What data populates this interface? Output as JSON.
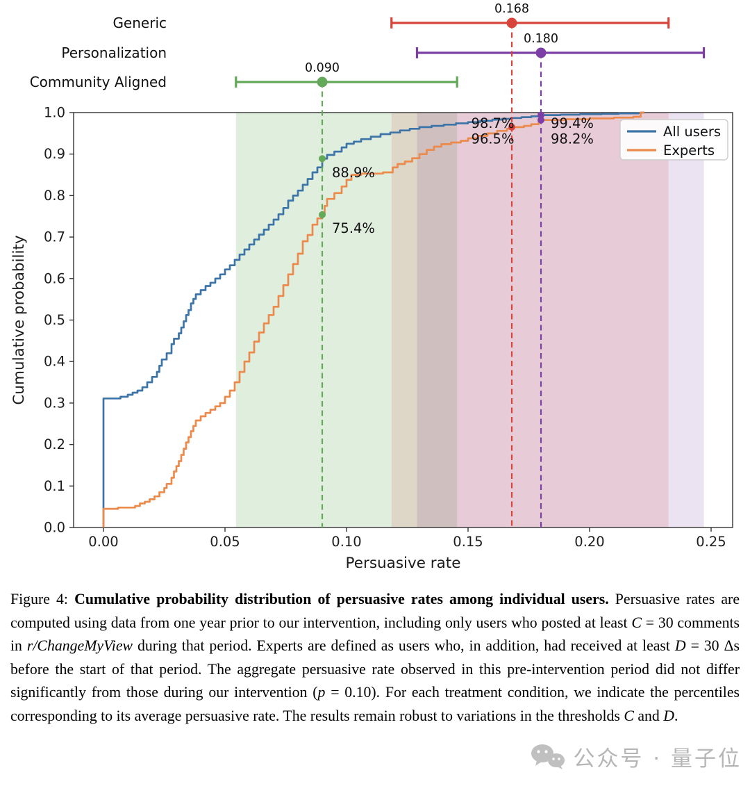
{
  "figure": {
    "caption_segments": [
      {
        "t": "Figure 4: ",
        "s": "normal"
      },
      {
        "t": "Cumulative probability distribution of persuasive rates among individual users.",
        "s": "bold"
      },
      {
        "t": " Persuasive rates are computed using data from one year prior to our intervention, including only users who posted at least ",
        "s": "normal"
      },
      {
        "t": "C",
        "s": "math"
      },
      {
        "t": " = 30 comments in ",
        "s": "normal"
      },
      {
        "t": "r/ChangeMyView",
        "s": "italic"
      },
      {
        "t": " during that period.  Experts are defined as users who, in addition, had received at least ",
        "s": "normal"
      },
      {
        "t": "D",
        "s": "math"
      },
      {
        "t": " = 30 Δs before the start of that period.  The aggregate persuasive rate observed in this pre-intervention period did not differ significantly from those during our intervention (",
        "s": "normal"
      },
      {
        "t": "p",
        "s": "math"
      },
      {
        "t": " = 0.10).  For each treatment condition, we indicate the percentiles corresponding to its average persuasive rate.  The results remain robust to variations in the thresholds ",
        "s": "normal"
      },
      {
        "t": "C",
        "s": "math"
      },
      {
        "t": " and ",
        "s": "normal"
      },
      {
        "t": "D",
        "s": "math"
      },
      {
        "t": ".",
        "s": "normal"
      }
    ]
  },
  "watermark": {
    "icon": "wechat-icon",
    "text": "公众号 · 量子位"
  },
  "chart_data": {
    "type": "line",
    "subtype": "step-cdf",
    "xlabel": "Persuasive rate",
    "ylabel": "Cumulative probability",
    "xlim": [
      -0.0123,
      0.259
    ],
    "ylim": [
      0.0,
      1.0
    ],
    "grid": false,
    "x_ticks": {
      "values": [
        0.0,
        0.05,
        0.1,
        0.15,
        0.2,
        0.25
      ],
      "labels": [
        "0.00",
        "0.05",
        "0.10",
        "0.15",
        "0.20",
        "0.25"
      ]
    },
    "y_ticks": {
      "values": [
        0.0,
        0.1,
        0.2,
        0.3,
        0.4,
        0.5,
        0.6,
        0.7,
        0.8,
        0.9,
        1.0
      ],
      "labels": [
        "0.0",
        "0.1",
        "0.2",
        "0.3",
        "0.4",
        "0.5",
        "0.6",
        "0.7",
        "0.8",
        "0.9",
        "1.0"
      ]
    },
    "legend": {
      "position": "upper right",
      "entries": [
        {
          "label": "All users",
          "color": "#3d74a8"
        },
        {
          "label": "Experts",
          "color": "#ec8a4c"
        }
      ]
    },
    "series": [
      {
        "name": "All users",
        "color": "#3d74a8",
        "steps": [
          [
            0.0,
            0.311
          ],
          [
            0.007,
            0.315
          ],
          [
            0.01,
            0.32
          ],
          [
            0.012,
            0.325
          ],
          [
            0.014,
            0.33
          ],
          [
            0.016,
            0.338
          ],
          [
            0.018,
            0.35
          ],
          [
            0.02,
            0.363
          ],
          [
            0.022,
            0.375
          ],
          [
            0.023,
            0.39
          ],
          [
            0.024,
            0.405
          ],
          [
            0.026,
            0.42
          ],
          [
            0.028,
            0.442
          ],
          [
            0.029,
            0.455
          ],
          [
            0.031,
            0.468
          ],
          [
            0.032,
            0.482
          ],
          [
            0.033,
            0.497
          ],
          [
            0.034,
            0.512
          ],
          [
            0.035,
            0.524
          ],
          [
            0.036,
            0.54
          ],
          [
            0.037,
            0.551
          ],
          [
            0.038,
            0.562
          ],
          [
            0.04,
            0.572
          ],
          [
            0.042,
            0.582
          ],
          [
            0.044,
            0.59
          ],
          [
            0.046,
            0.6
          ],
          [
            0.048,
            0.61
          ],
          [
            0.05,
            0.622
          ],
          [
            0.052,
            0.632
          ],
          [
            0.054,
            0.645
          ],
          [
            0.056,
            0.658
          ],
          [
            0.058,
            0.67
          ],
          [
            0.06,
            0.682
          ],
          [
            0.062,
            0.694
          ],
          [
            0.064,
            0.706
          ],
          [
            0.066,
            0.718
          ],
          [
            0.068,
            0.73
          ],
          [
            0.07,
            0.742
          ],
          [
            0.072,
            0.755
          ],
          [
            0.074,
            0.77
          ],
          [
            0.076,
            0.788
          ],
          [
            0.078,
            0.8
          ],
          [
            0.08,
            0.812
          ],
          [
            0.082,
            0.826
          ],
          [
            0.084,
            0.84
          ],
          [
            0.086,
            0.856
          ],
          [
            0.088,
            0.868
          ],
          [
            0.09,
            0.889
          ],
          [
            0.092,
            0.898
          ],
          [
            0.095,
            0.906
          ],
          [
            0.098,
            0.916
          ],
          [
            0.1,
            0.925
          ],
          [
            0.103,
            0.93
          ],
          [
            0.106,
            0.936
          ],
          [
            0.11,
            0.942
          ],
          [
            0.114,
            0.948
          ],
          [
            0.118,
            0.952
          ],
          [
            0.122,
            0.957
          ],
          [
            0.126,
            0.961
          ],
          [
            0.13,
            0.965
          ],
          [
            0.135,
            0.968
          ],
          [
            0.14,
            0.971
          ],
          [
            0.145,
            0.974
          ],
          [
            0.15,
            0.977
          ],
          [
            0.155,
            0.98
          ],
          [
            0.16,
            0.983
          ],
          [
            0.164,
            0.985
          ],
          [
            0.168,
            0.987
          ],
          [
            0.172,
            0.989
          ],
          [
            0.176,
            0.991
          ],
          [
            0.18,
            0.994
          ],
          [
            0.188,
            0.995
          ],
          [
            0.196,
            0.996
          ],
          [
            0.205,
            0.997
          ],
          [
            0.212,
            0.998
          ],
          [
            0.22,
            0.999
          ],
          [
            0.221,
            1.0
          ],
          [
            0.2225,
            1.0
          ]
        ]
      },
      {
        "name": "Experts",
        "color": "#ec8a4c",
        "steps": [
          [
            0.0,
            0.045
          ],
          [
            0.006,
            0.048
          ],
          [
            0.013,
            0.052
          ],
          [
            0.015,
            0.058
          ],
          [
            0.017,
            0.062
          ],
          [
            0.019,
            0.068
          ],
          [
            0.021,
            0.075
          ],
          [
            0.023,
            0.085
          ],
          [
            0.025,
            0.095
          ],
          [
            0.026,
            0.105
          ],
          [
            0.028,
            0.12
          ],
          [
            0.029,
            0.135
          ],
          [
            0.03,
            0.148
          ],
          [
            0.031,
            0.16
          ],
          [
            0.032,
            0.175
          ],
          [
            0.033,
            0.19
          ],
          [
            0.034,
            0.205
          ],
          [
            0.035,
            0.218
          ],
          [
            0.036,
            0.232
          ],
          [
            0.037,
            0.245
          ],
          [
            0.038,
            0.258
          ],
          [
            0.04,
            0.268
          ],
          [
            0.042,
            0.276
          ],
          [
            0.044,
            0.284
          ],
          [
            0.046,
            0.292
          ],
          [
            0.048,
            0.3
          ],
          [
            0.05,
            0.315
          ],
          [
            0.052,
            0.33
          ],
          [
            0.054,
            0.35
          ],
          [
            0.056,
            0.375
          ],
          [
            0.058,
            0.4
          ],
          [
            0.06,
            0.422
          ],
          [
            0.062,
            0.448
          ],
          [
            0.064,
            0.47
          ],
          [
            0.066,
            0.492
          ],
          [
            0.068,
            0.512
          ],
          [
            0.07,
            0.532
          ],
          [
            0.072,
            0.558
          ],
          [
            0.074,
            0.584
          ],
          [
            0.076,
            0.61
          ],
          [
            0.078,
            0.635
          ],
          [
            0.08,
            0.66
          ],
          [
            0.082,
            0.69
          ],
          [
            0.084,
            0.705
          ],
          [
            0.086,
            0.73
          ],
          [
            0.088,
            0.745
          ],
          [
            0.09,
            0.754
          ],
          [
            0.091,
            0.775
          ],
          [
            0.092,
            0.792
          ],
          [
            0.095,
            0.806
          ],
          [
            0.098,
            0.822
          ],
          [
            0.1,
            0.838
          ],
          [
            0.102,
            0.85
          ],
          [
            0.106,
            0.853
          ],
          [
            0.115,
            0.856
          ],
          [
            0.119,
            0.868
          ],
          [
            0.121,
            0.876
          ],
          [
            0.124,
            0.882
          ],
          [
            0.127,
            0.89
          ],
          [
            0.13,
            0.9
          ],
          [
            0.133,
            0.91
          ],
          [
            0.136,
            0.918
          ],
          [
            0.139,
            0.924
          ],
          [
            0.143,
            0.928
          ],
          [
            0.147,
            0.932
          ],
          [
            0.15,
            0.938
          ],
          [
            0.154,
            0.944
          ],
          [
            0.158,
            0.95
          ],
          [
            0.162,
            0.956
          ],
          [
            0.166,
            0.961
          ],
          [
            0.168,
            0.965
          ],
          [
            0.173,
            0.968
          ],
          [
            0.176,
            0.972
          ],
          [
            0.179,
            0.976
          ],
          [
            0.18,
            0.982
          ],
          [
            0.19,
            0.984
          ],
          [
            0.2,
            0.986
          ],
          [
            0.21,
            0.988
          ],
          [
            0.218,
            0.99
          ],
          [
            0.221,
            1.0
          ],
          [
            0.2225,
            1.0
          ]
        ]
      }
    ],
    "treatments": [
      {
        "label": "Community Aligned",
        "value_label": "0.090",
        "center": 0.09,
        "ci": [
          0.0545,
          0.1455
        ],
        "color": "#64a85a",
        "region_alpha": 0.2,
        "row_y": 118,
        "curve_dots": [
          0.889,
          0.754
        ]
      },
      {
        "label": "Personalization",
        "value_label": "0.180",
        "center": 0.18,
        "ci": [
          0.129,
          0.247
        ],
        "color": "#7c3fa5",
        "region_alpha": 0.15,
        "row_y": 76,
        "curve_dots": [
          0.994,
          0.982
        ]
      },
      {
        "label": "Generic",
        "value_label": "0.168",
        "center": 0.168,
        "ci": [
          0.1185,
          0.2325
        ],
        "color": "#d6443b",
        "region_alpha": 0.14,
        "row_y": 33,
        "curve_dots": [
          0.965
        ]
      }
    ],
    "annotations": [
      {
        "text": "88.9%",
        "x": 0.094,
        "y": 0.856,
        "anchor": "start"
      },
      {
        "text": "75.4%",
        "x": 0.094,
        "y": 0.722,
        "anchor": "start"
      },
      {
        "text": "98.7%",
        "x": 0.169,
        "y": 0.975,
        "anchor": "end"
      },
      {
        "text": "96.5%",
        "x": 0.169,
        "y": 0.937,
        "anchor": "end"
      },
      {
        "text": "99.4%",
        "x": 0.184,
        "y": 0.975,
        "anchor": "start"
      },
      {
        "text": "98.2%",
        "x": 0.184,
        "y": 0.937,
        "anchor": "start"
      }
    ],
    "style": {
      "spine_color": "#333333",
      "text_color": "#1c1c1c",
      "background": "#ffffff"
    }
  }
}
